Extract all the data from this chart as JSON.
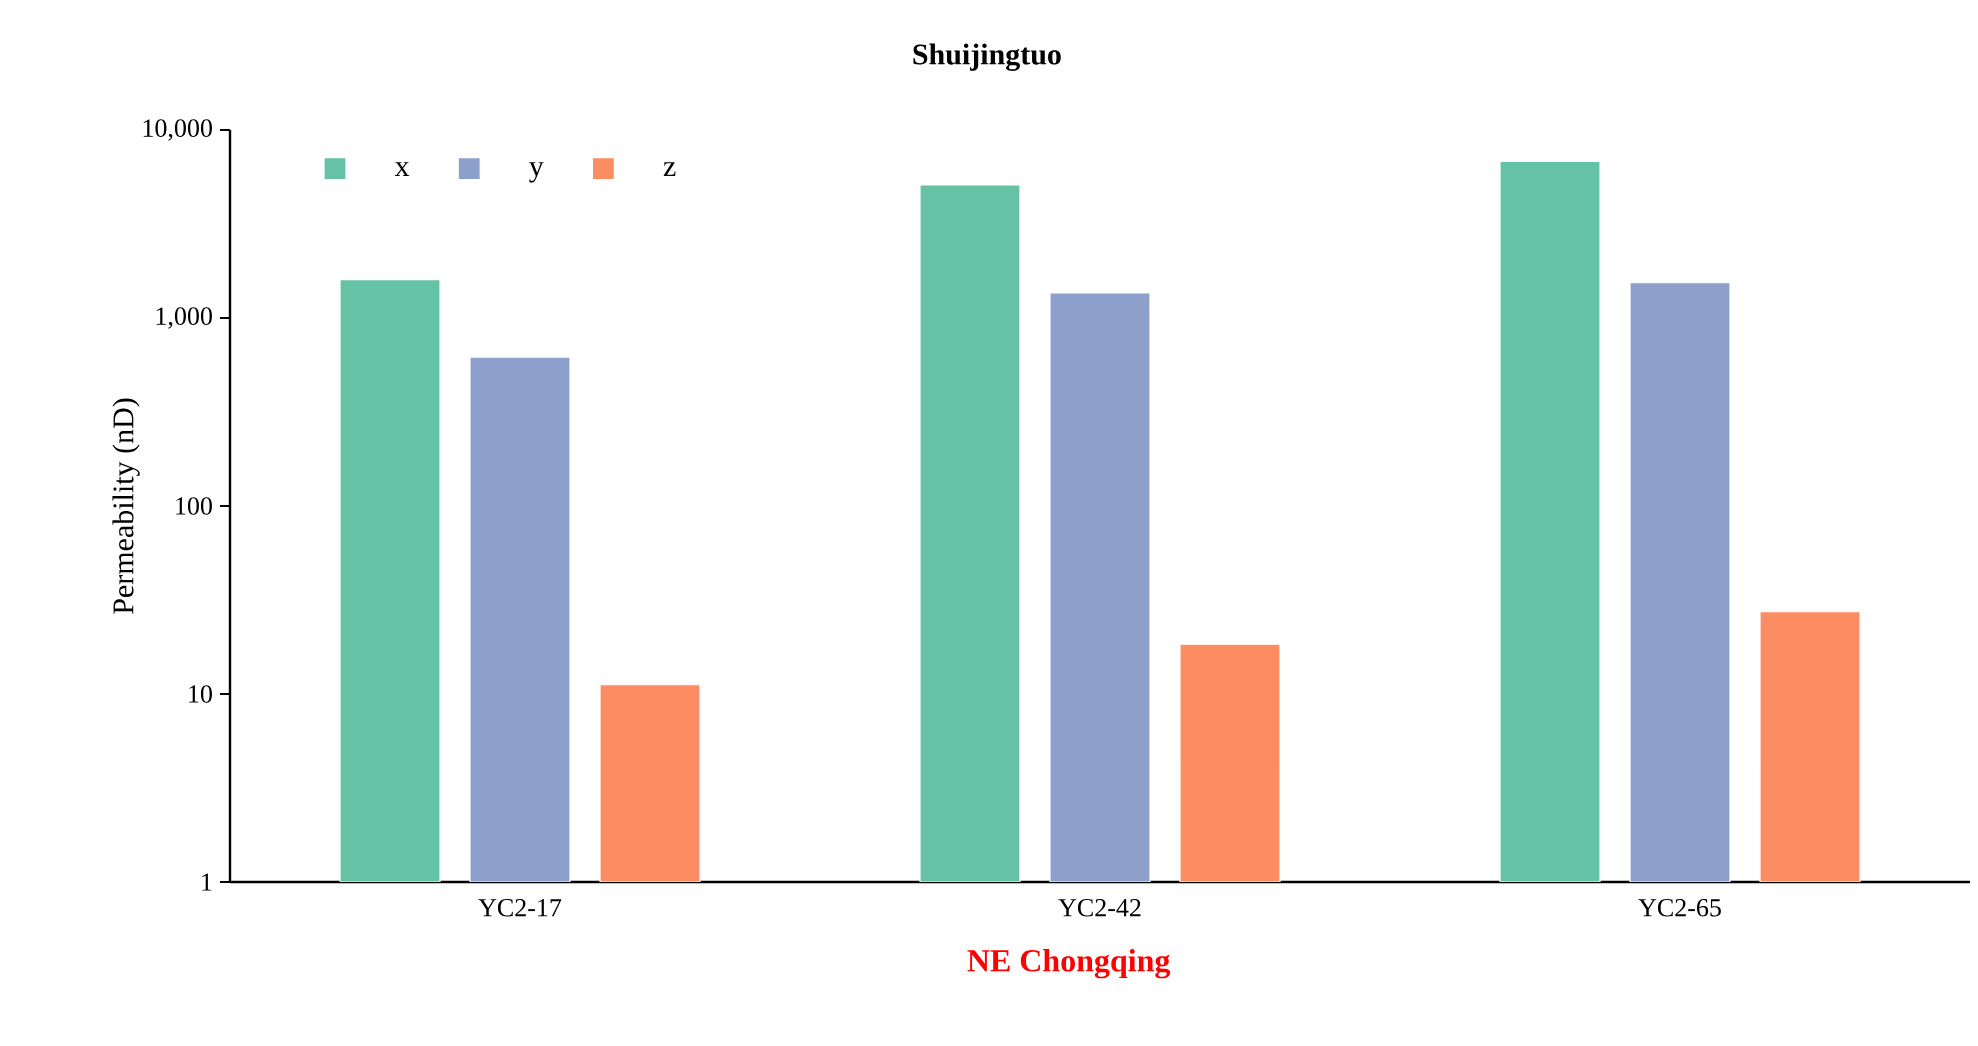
{
  "chart_data": {
    "type": "bar",
    "title": "Shuijingtuo",
    "xlabel": "NE Chongqing",
    "ylabel": "Permeability (nD)",
    "categories": [
      "YC2-17",
      "YC2-42",
      "YC2-65"
    ],
    "series": [
      {
        "name": "x",
        "color": "#66c2a5",
        "values": [
          1600,
          5100,
          6800
        ]
      },
      {
        "name": "y",
        "color": "#8da0cb",
        "values": [
          620,
          1360,
          1540
        ]
      },
      {
        "name": "z",
        "color": "#fc8d62",
        "values": [
          11.2,
          18.4,
          27.4
        ]
      }
    ],
    "log": "y",
    "ylim": [
      1,
      10000
    ],
    "yticks": [
      1,
      10,
      100,
      {
        "value": 1000,
        "label": "1,000"
      },
      {
        "value": 10000,
        "label": "10,000"
      }
    ],
    "legend": "top left"
  }
}
